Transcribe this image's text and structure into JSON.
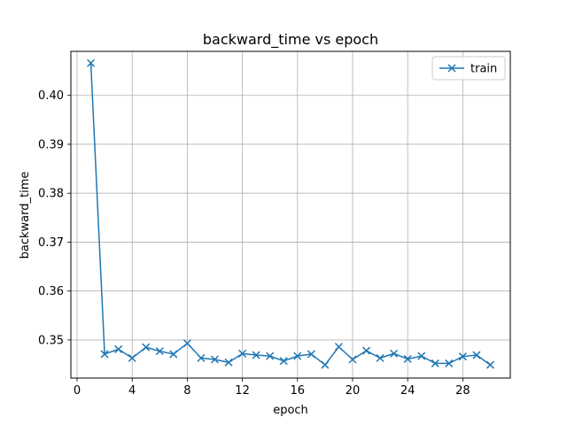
{
  "chart_data": {
    "type": "line",
    "title": "backward_time vs epoch",
    "xlabel": "epoch",
    "ylabel": "backward_time",
    "xlim": [
      -0.45,
      31.45
    ],
    "ylim": [
      0.3422,
      0.409
    ],
    "xticks": [
      0,
      4,
      8,
      12,
      16,
      20,
      24,
      28
    ],
    "yticks": [
      0.35,
      0.36,
      0.37,
      0.38,
      0.39,
      0.4
    ],
    "grid": true,
    "legend_position": "top-right",
    "colors": {
      "train": "#1f77b4",
      "grid": "#b0b0b0"
    },
    "series": [
      {
        "name": "train",
        "marker": "x",
        "x": [
          1,
          2,
          3,
          4,
          5,
          6,
          7,
          8,
          9,
          10,
          11,
          12,
          13,
          14,
          15,
          16,
          17,
          18,
          19,
          20,
          21,
          22,
          23,
          24,
          25,
          26,
          27,
          28,
          29,
          30
        ],
        "y": [
          0.4066,
          0.3471,
          0.3481,
          0.3463,
          0.3485,
          0.3477,
          0.3471,
          0.3493,
          0.3463,
          0.346,
          0.3454,
          0.3472,
          0.3469,
          0.3467,
          0.3457,
          0.3467,
          0.3471,
          0.3449,
          0.3486,
          0.346,
          0.3478,
          0.3463,
          0.3472,
          0.3461,
          0.3467,
          0.3452,
          0.3452,
          0.3466,
          0.3469,
          0.3449
        ]
      }
    ]
  }
}
